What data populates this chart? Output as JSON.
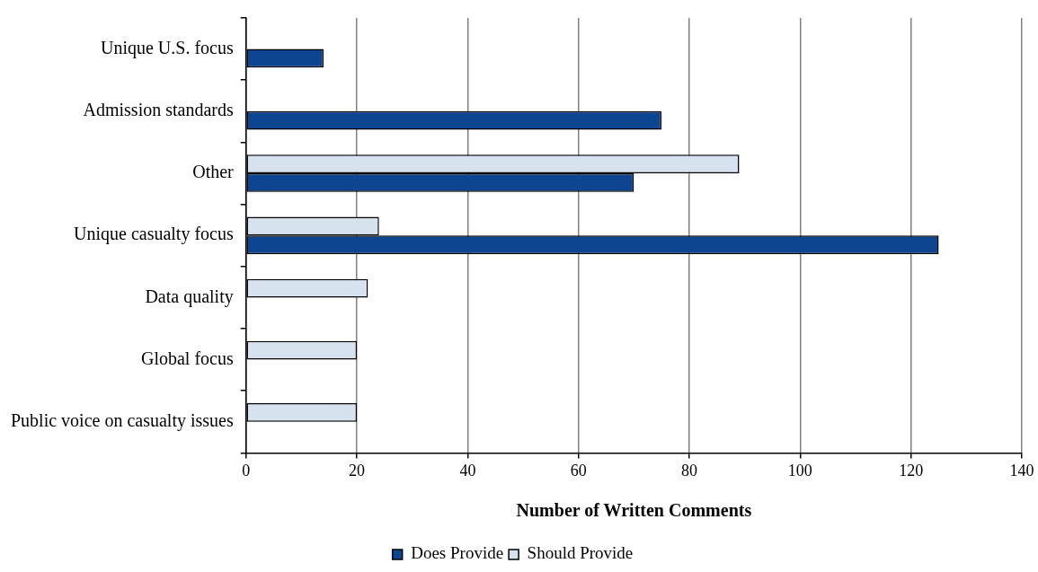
{
  "chart_data": {
    "type": "bar",
    "orientation": "horizontal",
    "categories": [
      "Unique U.S. focus",
      "Admission standards",
      "Other",
      "Unique casualty focus",
      "Data quality",
      "Global focus",
      "Public voice on casualty issues"
    ],
    "series": [
      {
        "name": "Does Provide",
        "color": "#0d4590",
        "values": [
          14,
          75,
          70,
          125,
          null,
          null,
          null
        ]
      },
      {
        "name": "Should Provide",
        "color": "#d6e2ee",
        "values": [
          null,
          null,
          89,
          24,
          22,
          20,
          20
        ]
      }
    ],
    "xlabel": "Number of Written Comments",
    "xlim": [
      0,
      140
    ],
    "xticks": [
      0,
      20,
      40,
      60,
      80,
      100,
      120,
      140
    ],
    "grid": "x",
    "legend": "bottom"
  }
}
